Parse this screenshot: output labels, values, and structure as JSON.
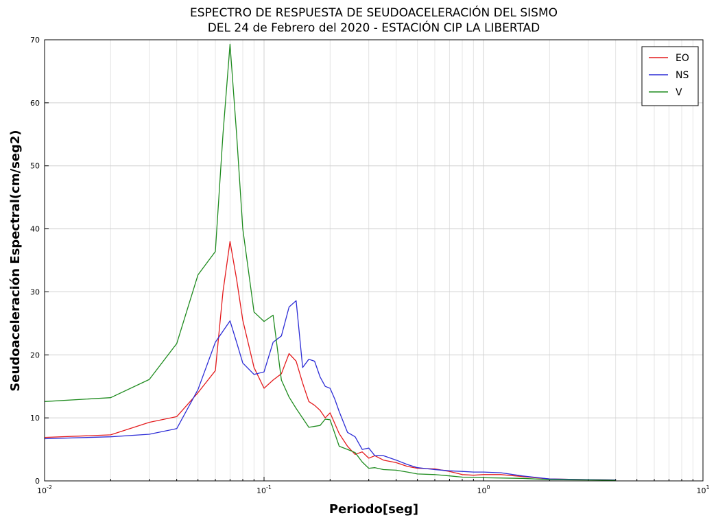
{
  "chart_data": {
    "type": "line",
    "title_line1": "ESPECTRO DE RESPUESTA DE SEUDOACELERACIÓN DEL SISMO",
    "title_line2": "DEL 24 de Febrero del 2020 - ESTACIÓN CIP LA LIBERTAD",
    "xlabel": "Periodo[seg]",
    "ylabel": "Seudoaceleración Espectral(cm/seg2)",
    "x_scale": "log",
    "xlim": [
      0.01,
      10
    ],
    "ylim": [
      0,
      70
    ],
    "y_ticks": [
      "0",
      "10",
      "20",
      "30",
      "40",
      "50",
      "60",
      "70"
    ],
    "x_ticks": [
      {
        "base": "10",
        "exp": "-2",
        "value": 0.01
      },
      {
        "base": "10",
        "exp": "-1",
        "value": 0.1
      },
      {
        "base": "10",
        "exp": "0",
        "value": 1
      },
      {
        "base": "10",
        "exp": "1",
        "value": 10
      }
    ],
    "grid": true,
    "legend_position": "top-right",
    "series": [
      {
        "name": "EO",
        "color": "#e41a1c",
        "points": [
          [
            0.01,
            6.9
          ],
          [
            0.02,
            7.3
          ],
          [
            0.03,
            9.3
          ],
          [
            0.04,
            10.2
          ],
          [
            0.05,
            14.0
          ],
          [
            0.06,
            17.5
          ],
          [
            0.065,
            30.0
          ],
          [
            0.07,
            38.0
          ],
          [
            0.075,
            32.0
          ],
          [
            0.08,
            25.5
          ],
          [
            0.09,
            18.0
          ],
          [
            0.1,
            14.7
          ],
          [
            0.11,
            16.0
          ],
          [
            0.12,
            17.0
          ],
          [
            0.13,
            20.2
          ],
          [
            0.14,
            19.0
          ],
          [
            0.15,
            15.5
          ],
          [
            0.16,
            12.6
          ],
          [
            0.17,
            12.0
          ],
          [
            0.18,
            11.2
          ],
          [
            0.19,
            10.0
          ],
          [
            0.2,
            10.8
          ],
          [
            0.22,
            7.5
          ],
          [
            0.24,
            5.5
          ],
          [
            0.26,
            4.2
          ],
          [
            0.28,
            4.6
          ],
          [
            0.3,
            3.6
          ],
          [
            0.32,
            4.0
          ],
          [
            0.35,
            3.3
          ],
          [
            0.4,
            2.9
          ],
          [
            0.45,
            2.3
          ],
          [
            0.5,
            2.0
          ],
          [
            0.6,
            1.9
          ],
          [
            0.7,
            1.5
          ],
          [
            0.8,
            1.0
          ],
          [
            0.9,
            0.9
          ],
          [
            1.0,
            1.0
          ],
          [
            1.2,
            1.0
          ],
          [
            1.5,
            0.7
          ],
          [
            2.0,
            0.3
          ],
          [
            3.0,
            0.2
          ],
          [
            4.0,
            0.15
          ]
        ]
      },
      {
        "name": "NS",
        "color": "#2c2cd6",
        "points": [
          [
            0.01,
            6.7
          ],
          [
            0.02,
            7.0
          ],
          [
            0.03,
            7.4
          ],
          [
            0.04,
            8.3
          ],
          [
            0.05,
            14.5
          ],
          [
            0.06,
            22.0
          ],
          [
            0.07,
            25.4
          ],
          [
            0.075,
            22.0
          ],
          [
            0.08,
            18.7
          ],
          [
            0.09,
            16.9
          ],
          [
            0.1,
            17.3
          ],
          [
            0.11,
            22.0
          ],
          [
            0.12,
            23.0
          ],
          [
            0.13,
            27.6
          ],
          [
            0.14,
            28.6
          ],
          [
            0.15,
            18.0
          ],
          [
            0.16,
            19.3
          ],
          [
            0.17,
            19.0
          ],
          [
            0.18,
            16.5
          ],
          [
            0.19,
            15.0
          ],
          [
            0.2,
            14.7
          ],
          [
            0.21,
            13.0
          ],
          [
            0.22,
            11.0
          ],
          [
            0.24,
            7.7
          ],
          [
            0.26,
            7.0
          ],
          [
            0.28,
            5.0
          ],
          [
            0.3,
            5.2
          ],
          [
            0.32,
            4.0
          ],
          [
            0.35,
            4.0
          ],
          [
            0.4,
            3.3
          ],
          [
            0.45,
            2.6
          ],
          [
            0.5,
            2.1
          ],
          [
            0.6,
            1.8
          ],
          [
            0.7,
            1.6
          ],
          [
            0.8,
            1.5
          ],
          [
            0.9,
            1.4
          ],
          [
            1.0,
            1.4
          ],
          [
            1.2,
            1.3
          ],
          [
            1.5,
            0.8
          ],
          [
            2.0,
            0.3
          ],
          [
            3.0,
            0.2
          ],
          [
            4.0,
            0.15
          ]
        ]
      },
      {
        "name": "V",
        "color": "#1e8b1e",
        "points": [
          [
            0.01,
            12.6
          ],
          [
            0.02,
            13.2
          ],
          [
            0.03,
            16.1
          ],
          [
            0.04,
            21.8
          ],
          [
            0.05,
            32.7
          ],
          [
            0.06,
            36.4
          ],
          [
            0.065,
            55.0
          ],
          [
            0.07,
            69.3
          ],
          [
            0.075,
            55.0
          ],
          [
            0.08,
            40.0
          ],
          [
            0.09,
            26.8
          ],
          [
            0.1,
            25.3
          ],
          [
            0.11,
            26.3
          ],
          [
            0.12,
            16.0
          ],
          [
            0.13,
            13.3
          ],
          [
            0.14,
            11.5
          ],
          [
            0.16,
            8.5
          ],
          [
            0.18,
            8.8
          ],
          [
            0.19,
            9.8
          ],
          [
            0.2,
            9.7
          ],
          [
            0.22,
            5.5
          ],
          [
            0.24,
            5.0
          ],
          [
            0.26,
            4.5
          ],
          [
            0.28,
            3.0
          ],
          [
            0.3,
            2.0
          ],
          [
            0.32,
            2.1
          ],
          [
            0.35,
            1.8
          ],
          [
            0.4,
            1.7
          ],
          [
            0.45,
            1.4
          ],
          [
            0.5,
            1.1
          ],
          [
            0.6,
            1.0
          ],
          [
            0.7,
            0.8
          ],
          [
            0.8,
            0.6
          ],
          [
            1.0,
            0.5
          ],
          [
            1.5,
            0.4
          ],
          [
            2.0,
            0.2
          ],
          [
            3.0,
            0.15
          ],
          [
            4.0,
            0.1
          ]
        ]
      }
    ]
  }
}
